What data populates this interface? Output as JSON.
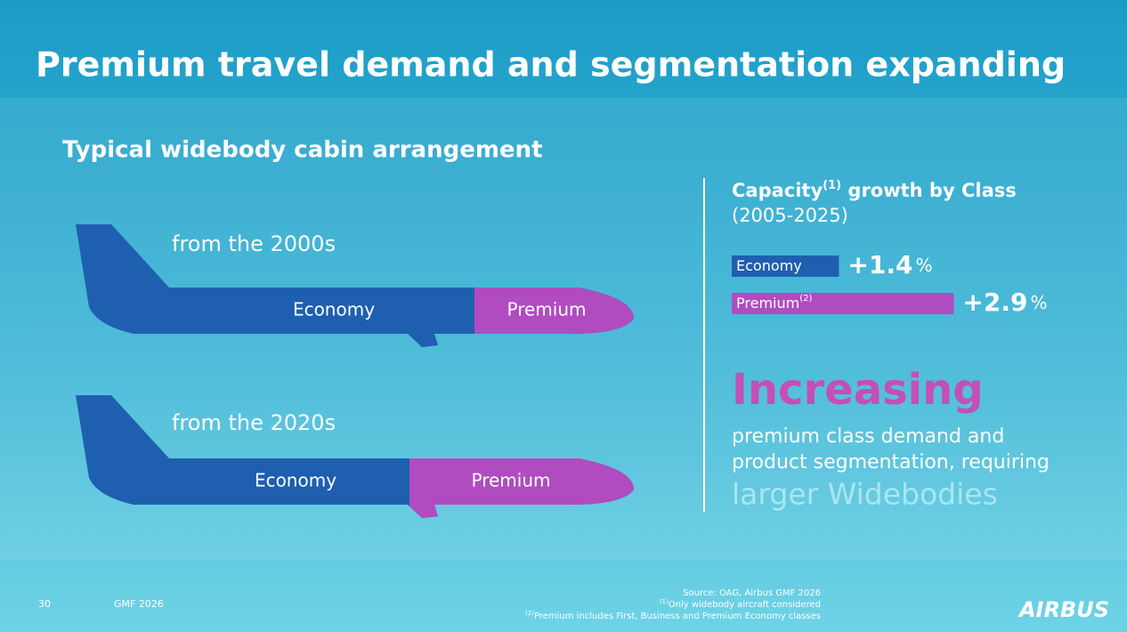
{
  "title": "Premium travel demand and segmentation expanding",
  "subtitle": "Typical widebody cabin arrangement",
  "cabins": [
    {
      "label": "from the 2000s",
      "economy": "Economy",
      "premium": "Premium"
    },
    {
      "label": "from the 2020s",
      "economy": "Economy",
      "premium": "Premium"
    }
  ],
  "growth": {
    "heading": "Capacity",
    "heading_sup": "(1)",
    "heading_rest": " growth by Class",
    "period": "(2005-2025)",
    "categories": [
      "Economy",
      "Premium"
    ],
    "premium_sup": "(2)",
    "values": [
      1.4,
      2.9
    ],
    "value_labels": [
      "+1.4",
      "+2.9"
    ],
    "unit": "%",
    "colors": [
      "#1f5fb0",
      "#b04cc0"
    ]
  },
  "highlight": {
    "word": "Increasing",
    "lines": [
      "premium class demand and",
      "product segmentation, requiring"
    ],
    "emphasis": "larger Widebodies"
  },
  "footer": {
    "page": "30",
    "event": "GMF 2026",
    "source": "Source: OAG, Airbus GMF 2026",
    "note1_sup": "(1)",
    "note1": "Only widebody aircraft considered",
    "note2_sup": "(2)",
    "note2": "Premium includes First, Business and Premium Economy classes",
    "logo": "AIRBUS"
  }
}
